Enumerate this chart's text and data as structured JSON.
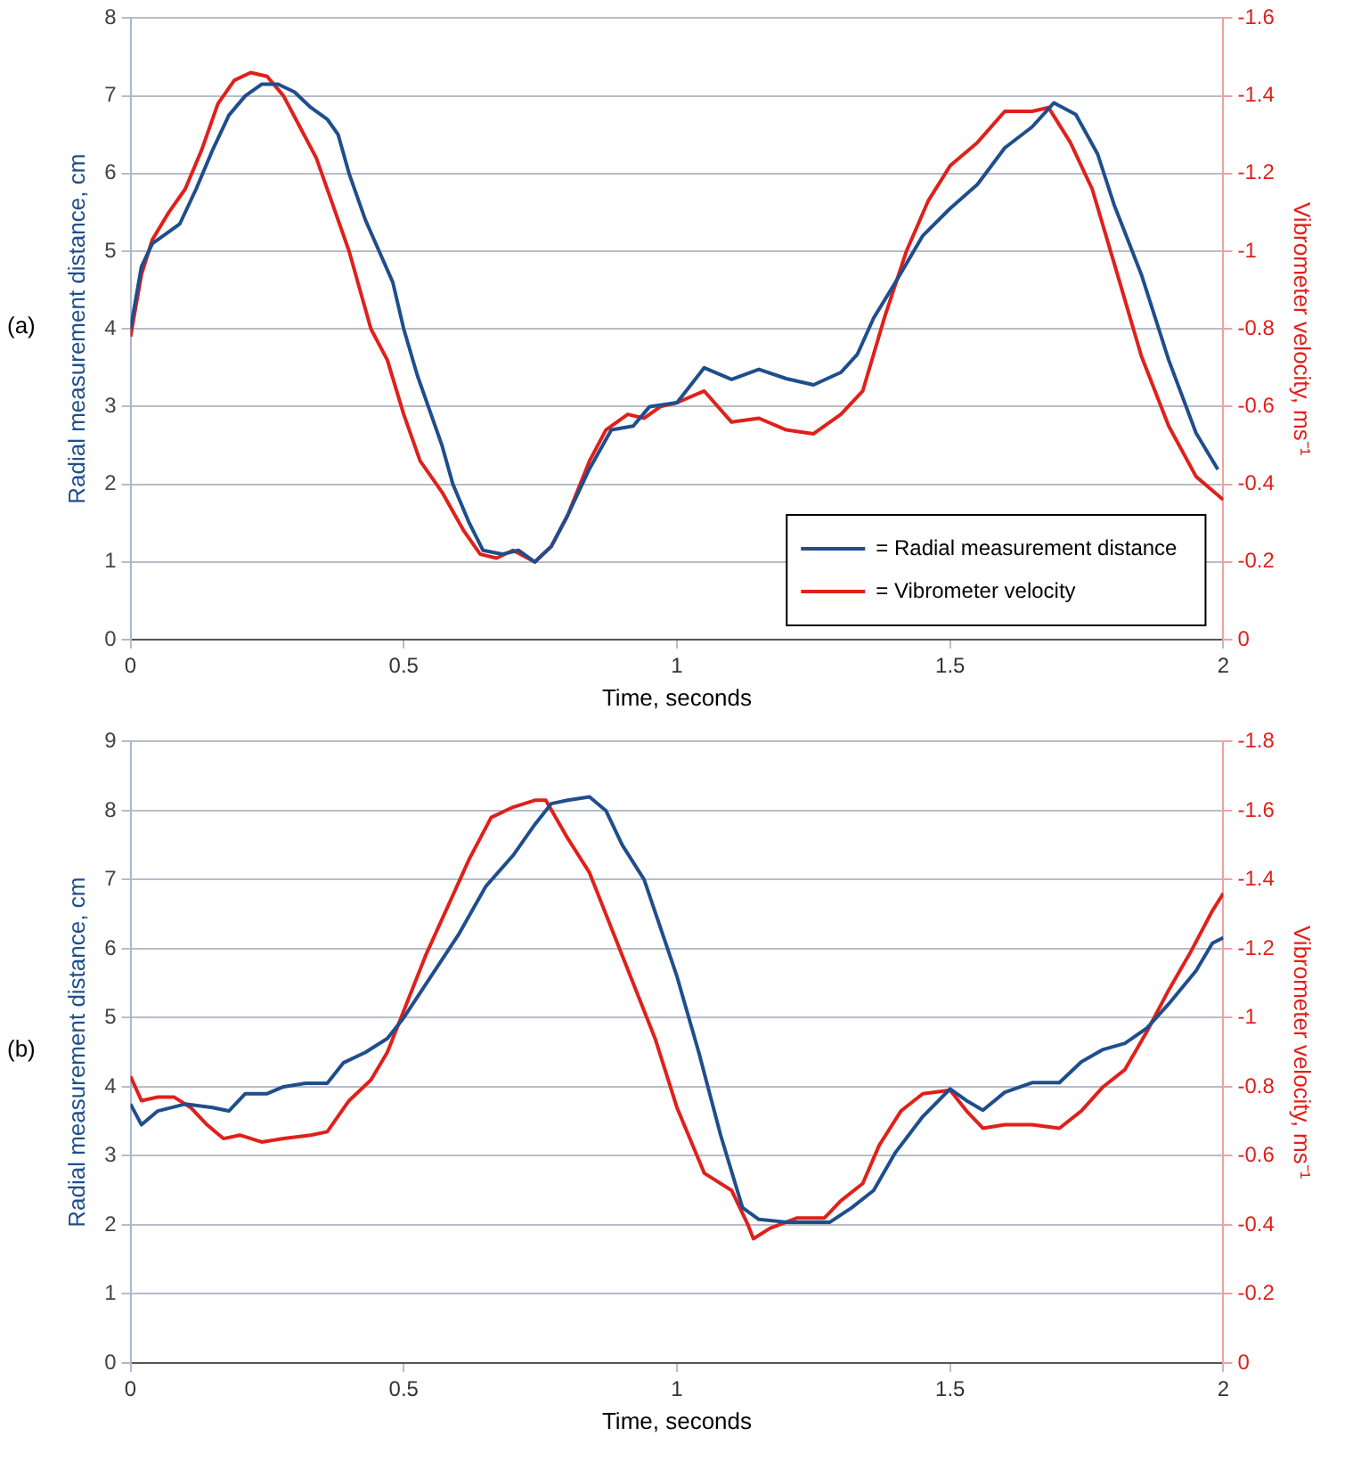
{
  "chart_data": [
    {
      "type": "line",
      "xlabel": "Time, seconds",
      "ylabel": "Radial measurement distance, cm",
      "y2label": "Vibrometer velocity, ms⁻¹",
      "annotations": [
        "(a)"
      ],
      "xlim": [
        0,
        2
      ],
      "xticks": [
        0,
        0.5,
        1,
        1.5,
        2
      ],
      "ylim": [
        0,
        8
      ],
      "yticks": [
        0,
        1,
        2,
        3,
        4,
        5,
        6,
        7,
        8
      ],
      "y2lim": [
        0,
        -1.6
      ],
      "y2ticks": [
        0,
        -0.2,
        -0.4,
        -0.6,
        -0.8,
        -1,
        -1.2,
        -1.4,
        -1.6
      ],
      "grid": "y",
      "legend": "bottom right",
      "marker": "none",
      "line_style": "solid",
      "series": [
        {
          "name": "= Radial measurement distance",
          "color": "#1f4e8c",
          "x": [
            0,
            0.02,
            0.04,
            0.06,
            0.09,
            0.12,
            0.15,
            0.18,
            0.21,
            0.24,
            0.27,
            0.3,
            0.33,
            0.36,
            0.38,
            0.4,
            0.43,
            0.455,
            0.48,
            0.5,
            0.525,
            0.545,
            0.57,
            0.59,
            0.62,
            0.645,
            0.68,
            0.71,
            0.74,
            0.77,
            0.8,
            0.84,
            0.88,
            0.92,
            0.95,
            1.0,
            1.05,
            1.1,
            1.15,
            1.2,
            1.25,
            1.3,
            1.33,
            1.36,
            1.4,
            1.45,
            1.5,
            1.55,
            1.6,
            1.65,
            1.69,
            1.73,
            1.77,
            1.8,
            1.85,
            1.9,
            1.95,
            1.99
          ],
          "values": [
            4.0,
            4.8,
            5.1,
            5.2,
            5.35,
            5.8,
            6.3,
            6.75,
            7.0,
            7.15,
            7.15,
            7.05,
            6.85,
            6.7,
            6.5,
            6.0,
            5.4,
            5.0,
            4.6,
            4.0,
            3.4,
            3.0,
            2.5,
            2.0,
            1.5,
            1.15,
            1.1,
            1.15,
            1.0,
            1.2,
            1.6,
            2.2,
            2.7,
            2.75,
            3.0,
            3.05,
            3.5,
            3.35,
            3.48,
            3.36,
            3.28,
            3.44,
            3.67,
            4.14,
            4.6,
            5.2,
            5.55,
            5.86,
            6.33,
            6.6,
            6.91,
            6.76,
            6.25,
            5.6,
            4.7,
            3.6,
            2.66,
            2.19
          ]
        },
        {
          "name": "= Vibrometer velocity",
          "color": "#e0201b",
          "axis": "y2",
          "x": [
            0,
            0.02,
            0.04,
            0.07,
            0.1,
            0.13,
            0.16,
            0.19,
            0.22,
            0.25,
            0.28,
            0.31,
            0.34,
            0.37,
            0.4,
            0.44,
            0.47,
            0.5,
            0.53,
            0.57,
            0.61,
            0.64,
            0.67,
            0.7,
            0.74,
            0.77,
            0.8,
            0.84,
            0.87,
            0.91,
            0.94,
            0.97,
            1.0,
            1.05,
            1.1,
            1.15,
            1.2,
            1.25,
            1.3,
            1.34,
            1.38,
            1.42,
            1.46,
            1.5,
            1.55,
            1.6,
            1.65,
            1.68,
            1.72,
            1.76,
            1.8,
            1.85,
            1.9,
            1.95,
            2.0
          ],
          "values": [
            -0.78,
            -0.94,
            -1.03,
            -1.1,
            -1.16,
            -1.26,
            -1.38,
            -1.44,
            -1.46,
            -1.45,
            -1.4,
            -1.32,
            -1.24,
            -1.12,
            -1.0,
            -0.8,
            -0.72,
            -0.58,
            -0.46,
            -0.38,
            -0.28,
            -0.22,
            -0.21,
            -0.23,
            -0.2,
            -0.24,
            -0.32,
            -0.46,
            -0.54,
            -0.58,
            -0.57,
            -0.6,
            -0.61,
            -0.64,
            -0.56,
            -0.57,
            -0.54,
            -0.53,
            -0.58,
            -0.64,
            -0.83,
            -1.0,
            -1.13,
            -1.22,
            -1.28,
            -1.36,
            -1.36,
            -1.37,
            -1.28,
            -1.16,
            -0.97,
            -0.73,
            -0.55,
            -0.42,
            -0.36
          ]
        }
      ]
    },
    {
      "type": "line",
      "xlabel": "Time, seconds",
      "ylabel": "Radial measurement distance, cm",
      "y2label": "Vibrometer velocity, ms⁻¹",
      "annotations": [
        "(b)"
      ],
      "xlim": [
        0,
        2
      ],
      "xticks": [
        0,
        0.5,
        1,
        1.5,
        2
      ],
      "ylim": [
        0,
        9
      ],
      "yticks": [
        0,
        1,
        2,
        3,
        4,
        5,
        6,
        7,
        8,
        9
      ],
      "y2lim": [
        0,
        -1.8
      ],
      "y2ticks": [
        0,
        -0.2,
        -0.4,
        -0.6,
        -0.8,
        -1,
        -1.2,
        -1.4,
        -1.6,
        -1.8
      ],
      "grid": "y",
      "marker": "none",
      "line_style": "solid",
      "series": [
        {
          "color": "#1f4e8c",
          "x": [
            0,
            0.02,
            0.05,
            0.1,
            0.15,
            0.18,
            0.21,
            0.25,
            0.28,
            0.32,
            0.36,
            0.39,
            0.43,
            0.47,
            0.5,
            0.55,
            0.6,
            0.65,
            0.7,
            0.74,
            0.77,
            0.8,
            0.84,
            0.87,
            0.9,
            0.94,
            1.0,
            1.04,
            1.08,
            1.12,
            1.15,
            1.2,
            1.25,
            1.28,
            1.32,
            1.36,
            1.4,
            1.45,
            1.5,
            1.53,
            1.56,
            1.6,
            1.65,
            1.7,
            1.74,
            1.78,
            1.82,
            1.86,
            1.9,
            1.95,
            1.98,
            2.0
          ],
          "values": [
            3.75,
            3.45,
            3.65,
            3.75,
            3.7,
            3.65,
            3.9,
            3.9,
            4.0,
            4.05,
            4.05,
            4.35,
            4.5,
            4.7,
            5.0,
            5.6,
            6.2,
            6.9,
            7.35,
            7.8,
            8.1,
            8.15,
            8.2,
            8.0,
            7.5,
            7.0,
            5.6,
            4.5,
            3.3,
            2.25,
            2.08,
            2.04,
            2.04,
            2.04,
            2.25,
            2.5,
            3.05,
            3.57,
            3.97,
            3.8,
            3.66,
            3.92,
            4.06,
            4.06,
            4.36,
            4.54,
            4.63,
            4.85,
            5.2,
            5.68,
            6.08,
            6.16
          ]
        },
        {
          "color": "#e0201b",
          "axis": "y2",
          "x": [
            0,
            0.02,
            0.05,
            0.08,
            0.11,
            0.14,
            0.17,
            0.2,
            0.24,
            0.28,
            0.33,
            0.36,
            0.4,
            0.44,
            0.47,
            0.5,
            0.54,
            0.58,
            0.62,
            0.66,
            0.7,
            0.74,
            0.76,
            0.8,
            0.84,
            0.88,
            0.92,
            0.96,
            1.0,
            1.05,
            1.1,
            1.13,
            1.14,
            1.17,
            1.22,
            1.27,
            1.3,
            1.34,
            1.37,
            1.41,
            1.45,
            1.5,
            1.53,
            1.56,
            1.6,
            1.65,
            1.7,
            1.74,
            1.78,
            1.82,
            1.86,
            1.9,
            1.94,
            1.98,
            2.0
          ],
          "values": [
            -0.83,
            -0.76,
            -0.77,
            -0.77,
            -0.74,
            -0.69,
            -0.65,
            -0.66,
            -0.64,
            -0.65,
            -0.66,
            -0.67,
            -0.76,
            -0.82,
            -0.9,
            -1.02,
            -1.18,
            -1.32,
            -1.46,
            -1.58,
            -1.61,
            -1.63,
            -1.63,
            -1.52,
            -1.42,
            -1.26,
            -1.1,
            -0.94,
            -0.74,
            -0.55,
            -0.5,
            -0.4,
            -0.36,
            -0.39,
            -0.42,
            -0.42,
            -0.47,
            -0.52,
            -0.63,
            -0.73,
            -0.78,
            -0.79,
            -0.73,
            -0.68,
            -0.69,
            -0.69,
            -0.68,
            -0.73,
            -0.8,
            -0.85,
            -0.96,
            -1.08,
            -1.19,
            -1.31,
            -1.36
          ]
        }
      ]
    }
  ]
}
